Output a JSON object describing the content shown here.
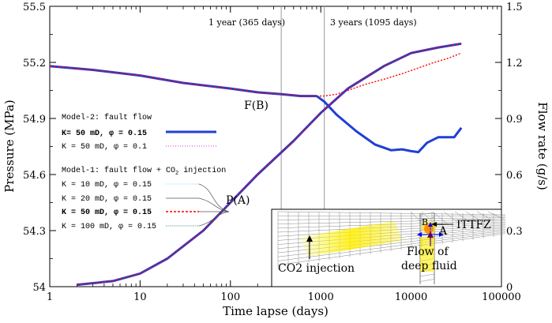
{
  "chart_data": {
    "type": "line",
    "x_scale": "log",
    "xlim": [
      1,
      100000
    ],
    "x_ticks": [
      1,
      10,
      100,
      1000,
      10000,
      100000
    ],
    "x_tick_labels": [
      "1",
      "10",
      "100",
      "1000",
      "10000",
      "100000"
    ],
    "xlabel": "Time lapse (days)",
    "ylim_left": [
      54.0,
      55.5
    ],
    "y_left_ticks": [
      54.0,
      54.3,
      54.6,
      54.9,
      55.2,
      55.5
    ],
    "y_left_tick_labels": [
      "54",
      "54.3",
      "54.6",
      "54.9",
      "55.2",
      "55.5"
    ],
    "ylabel_left": "Pressure (MPa)",
    "ylim_right": [
      0,
      1.5
    ],
    "y_right_ticks": [
      0,
      0.3,
      0.6,
      0.9,
      1.2,
      1.5
    ],
    "y_right_tick_labels": [
      "0",
      "0.3",
      "0.6",
      "0.9",
      "1.2",
      "1.5"
    ],
    "ylabel_right": "Flow rate (g/s)",
    "vlines": [
      {
        "x": 365,
        "label": "1 year (365 days)"
      },
      {
        "x": 1095,
        "label": "3 years (1095 days)"
      }
    ],
    "point_labels": [
      {
        "label": "F(B)",
        "x": 900,
        "y": 55.02
      },
      {
        "label": "P(A)",
        "x": 270,
        "y": 54.64
      }
    ],
    "series": [
      {
        "name": "Pressure (common trend)",
        "axis": "left",
        "color": "#00008b",
        "x": [
          1,
          3,
          10,
          30,
          100,
          200,
          365,
          600,
          900
        ],
        "y": [
          55.18,
          55.16,
          55.13,
          55.09,
          55.06,
          55.04,
          55.03,
          55.02,
          55.02
        ]
      },
      {
        "name": "K= 50 mD, φ = 0.15 (Model-2 pressure)",
        "axis": "left",
        "color": "#1f3fd6",
        "x": [
          900,
          1095,
          1500,
          2500,
          4000,
          6000,
          8000,
          10000,
          12000,
          15000,
          20000,
          25000,
          30000,
          36000
        ],
        "y": [
          55.02,
          54.99,
          54.92,
          54.83,
          54.76,
          54.73,
          54.735,
          54.725,
          54.72,
          54.77,
          54.8,
          54.8,
          54.8,
          54.85
        ]
      },
      {
        "name": "K= 50 mD, φ = 0.15 (Model-1 pressure)",
        "axis": "left",
        "color": "#ff0000",
        "x": [
          900,
          1095,
          1500,
          2000,
          3000,
          5000,
          8000,
          12000,
          18000,
          25000,
          36000
        ],
        "y": [
          55.02,
          55.02,
          55.03,
          55.05,
          55.08,
          55.11,
          55.14,
          55.17,
          55.2,
          55.22,
          55.25
        ]
      },
      {
        "name": "Flow rate (all models)",
        "axis": "right",
        "color": "#1f3fd6",
        "x": [
          2,
          5,
          10,
          20,
          50,
          100,
          200,
          500,
          1000,
          2000,
          5000,
          10000,
          20000,
          36000
        ],
        "y": [
          0.01,
          0.03,
          0.07,
          0.15,
          0.3,
          0.45,
          0.6,
          0.78,
          0.93,
          1.06,
          1.18,
          1.25,
          1.28,
          1.3
        ]
      }
    ]
  },
  "legend": {
    "model2_title": "Model-2: fault flow",
    "model2_items": [
      {
        "label": "K= 50 mD, φ = 0.15",
        "bold": true,
        "color": "#1f3fd6",
        "style": "solid-thick"
      },
      {
        "label": "K =  50 mD, φ = 0.1",
        "bold": false,
        "color": "#cc33cc",
        "style": "dotted"
      }
    ],
    "model1_title_prefix": "Model-1: fault flow + CO",
    "model1_title_sub": "2",
    "model1_title_suffix": " injection",
    "model1_items": [
      {
        "label": "K =  10 mD, φ = 0.15",
        "bold": false,
        "color": "#7fd3f0",
        "style": "dotted"
      },
      {
        "label": "K =  20 mD, φ = 0.15",
        "bold": false,
        "color": "#555555",
        "style": "solid-thin"
      },
      {
        "label": "K =  50 mD, φ = 0.15",
        "bold": true,
        "color": "#ff0000",
        "style": "dashed"
      },
      {
        "label": "K = 100 mD, φ = 0.15",
        "bold": false,
        "color": "#2e8b57",
        "style": "dotted"
      }
    ]
  },
  "inset": {
    "label_b": "B",
    "label_a": "A",
    "label_ittfz": "ITTFZ",
    "label_co2": "CO2 injection",
    "label_flow_line1": "Flow of",
    "label_flow_line2": "deep fluid"
  }
}
